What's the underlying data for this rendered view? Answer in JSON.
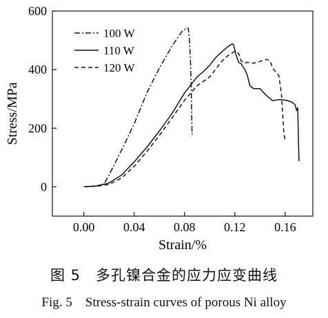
{
  "chart_data": {
    "type": "line",
    "xlabel": "Strain/%",
    "ylabel": "Stress/MPa",
    "xlim": [
      -0.025,
      0.182
    ],
    "ylim": [
      -100,
      600
    ],
    "xticks": [
      0.0,
      0.04,
      0.08,
      0.12,
      0.16
    ],
    "xtick_labels": [
      "0.00",
      "0.04",
      "0.08",
      "0.12",
      "0.16"
    ],
    "yticks": [
      0,
      200,
      400,
      600
    ],
    "ytick_labels": [
      "0",
      "200",
      "400",
      "600"
    ],
    "grid": false,
    "legend_position": "top-left",
    "series": [
      {
        "name": "100 W",
        "dash": "dashdot",
        "x": [
          0.0,
          0.01,
          0.016,
          0.02,
          0.03,
          0.04,
          0.05,
          0.06,
          0.07,
          0.078,
          0.082,
          0.083,
          0.084,
          0.085,
          0.0855,
          0.086,
          0.087
        ],
        "y": [
          0,
          3,
          10,
          40,
          125,
          215,
          320,
          405,
          480,
          530,
          543,
          541,
          500,
          400,
          300,
          180,
          185
        ]
      },
      {
        "name": "110 W",
        "dash": "solid",
        "x": [
          0.0,
          0.01,
          0.02,
          0.03,
          0.04,
          0.05,
          0.06,
          0.07,
          0.08,
          0.09,
          0.095,
          0.1,
          0.105,
          0.11,
          0.115,
          0.118,
          0.119,
          0.121,
          0.123,
          0.125,
          0.128,
          0.13,
          0.132,
          0.135,
          0.14,
          0.145,
          0.15,
          0.155,
          0.16,
          0.165,
          0.168,
          0.169,
          0.17,
          0.1705,
          0.171
        ],
        "y": [
          0,
          3,
          13,
          40,
          85,
          135,
          190,
          250,
          320,
          375,
          393,
          415,
          442,
          462,
          480,
          488,
          485,
          450,
          425,
          420,
          400,
          380,
          345,
          335,
          335,
          312,
          294,
          298,
          296,
          290,
          280,
          260,
          270,
          170,
          88
        ]
      },
      {
        "name": "120 W",
        "dash": "dashed",
        "x": [
          0.0,
          0.01,
          0.02,
          0.03,
          0.04,
          0.05,
          0.06,
          0.07,
          0.08,
          0.09,
          0.1,
          0.11,
          0.115,
          0.12,
          0.123,
          0.125,
          0.128,
          0.13,
          0.135,
          0.14,
          0.145,
          0.148,
          0.15,
          0.153,
          0.155,
          0.157,
          0.158,
          0.159,
          0.16
        ],
        "y": [
          0,
          2,
          8,
          30,
          70,
          120,
          175,
          235,
          295,
          345,
          375,
          430,
          450,
          462,
          455,
          430,
          422,
          425,
          422,
          428,
          435,
          430,
          405,
          390,
          380,
          320,
          250,
          180,
          160
        ]
      }
    ]
  },
  "caption_zh": "图 5　多孔镍合金的应力应变曲线",
  "caption_en": "Fig. 5　Stress-strain curves of porous Ni alloy"
}
